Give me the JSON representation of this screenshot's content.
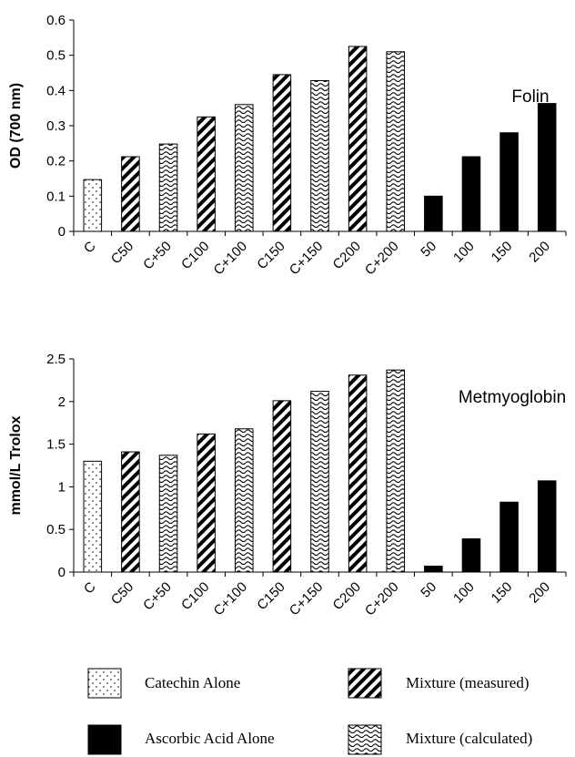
{
  "chart_data": [
    {
      "type": "bar",
      "title": "Folin",
      "ylabel": "OD (700 nm)",
      "ylim": [
        0,
        0.6
      ],
      "yticks": [
        "0",
        "0.1",
        "0.2",
        "0.3",
        "0.4",
        "0.5",
        "0.6"
      ],
      "categories": [
        "C",
        "C50",
        "C+50",
        "C100",
        "C+100",
        "C150",
        "C+150",
        "C200",
        "C+200",
        "50",
        "100",
        "150",
        "200"
      ],
      "values": [
        0.147,
        0.212,
        0.248,
        0.325,
        0.36,
        0.445,
        0.428,
        0.525,
        0.51,
        0.1,
        0.212,
        0.28,
        0.363
      ],
      "bar_series": [
        "catechin",
        "measured",
        "calculated",
        "measured",
        "calculated",
        "measured",
        "calculated",
        "measured",
        "calculated",
        "ascorbic",
        "ascorbic",
        "ascorbic",
        "ascorbic"
      ],
      "grid": false
    },
    {
      "type": "bar",
      "title": "Metmyoglobin",
      "ylabel": "mmol/L Trolox",
      "ylim": [
        0,
        2.5
      ],
      "yticks": [
        "0",
        "0.5",
        "1",
        "1.5",
        "2",
        "2.5"
      ],
      "categories": [
        "C",
        "C50",
        "C+50",
        "C100",
        "C+100",
        "C150",
        "C+150",
        "C200",
        "C+200",
        "50",
        "100",
        "150",
        "200"
      ],
      "values": [
        1.3,
        1.41,
        1.37,
        1.62,
        1.68,
        2.01,
        2.12,
        2.31,
        2.37,
        0.07,
        0.39,
        0.82,
        1.07
      ],
      "bar_series": [
        "catechin",
        "measured",
        "calculated",
        "measured",
        "calculated",
        "measured",
        "calculated",
        "measured",
        "calculated",
        "ascorbic",
        "ascorbic",
        "ascorbic",
        "ascorbic"
      ],
      "grid": false
    }
  ],
  "legend": [
    {
      "key": "catechin",
      "label": "Catechin Alone"
    },
    {
      "key": "measured",
      "label": "Mixture (measured)"
    },
    {
      "key": "ascorbic",
      "label": "Ascorbic Acid Alone"
    },
    {
      "key": "calculated",
      "label": "Mixture (calculated)"
    }
  ]
}
